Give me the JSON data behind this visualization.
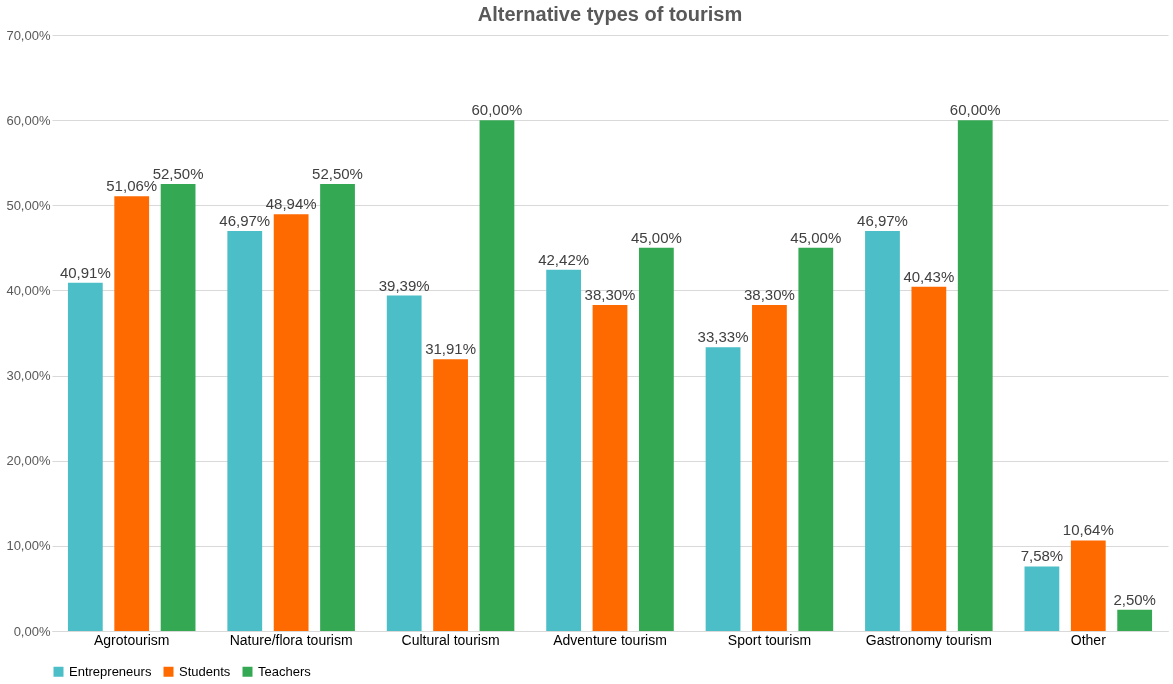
{
  "chart_data": {
    "type": "bar",
    "title": "Alternative types of tourism",
    "categories": [
      "Agrotourism",
      "Nature/flora tourism",
      "Cultural tourism",
      "Adventure tourism",
      "Sport tourism",
      "Gastronomy tourism",
      "Other"
    ],
    "series": [
      {
        "name": "Entrepreneurs",
        "color": "#4bbec8",
        "values": [
          40.91,
          46.97,
          39.39,
          42.42,
          33.33,
          46.97,
          7.58
        ],
        "value_labels": [
          "40,91%",
          "46,97%",
          "39,39%",
          "42,42%",
          "33,33%",
          "46,97%",
          "7,58%"
        ]
      },
      {
        "name": "Students",
        "color": "#ff6a00",
        "values": [
          51.06,
          48.94,
          31.91,
          38.3,
          38.3,
          40.43,
          10.64
        ],
        "value_labels": [
          "51,06%",
          "48,94%",
          "31,91%",
          "38,30%",
          "38,30%",
          "40,43%",
          "10,64%"
        ]
      },
      {
        "name": "Teachers",
        "color": "#35a853",
        "values": [
          52.5,
          52.5,
          60.0,
          45.0,
          45.0,
          60.0,
          2.5
        ],
        "value_labels": [
          "52,50%",
          "52,50%",
          "60,00%",
          "45,00%",
          "45,00%",
          "60,00%",
          "2,50%"
        ]
      }
    ],
    "ylim": [
      0,
      70
    ],
    "yticks": [
      {
        "value": 0,
        "label": "0,00%"
      },
      {
        "value": 10,
        "label": "10,00%"
      },
      {
        "value": 20,
        "label": "20,00%"
      },
      {
        "value": 30,
        "label": "30,00%"
      },
      {
        "value": 40,
        "label": "40,00%"
      },
      {
        "value": 50,
        "label": "50,00%"
      },
      {
        "value": 60,
        "label": "60,00%"
      },
      {
        "value": 70,
        "label": "70,00%"
      }
    ],
    "grid": "y",
    "legend": "bottom"
  }
}
